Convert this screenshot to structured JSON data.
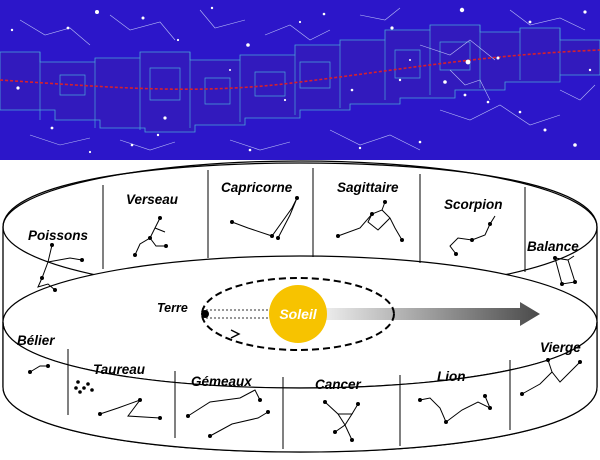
{
  "zodiac_signs": {
    "top_ring": [
      "Poissons",
      "Verseau",
      "Capricorne",
      "Sagittaire",
      "Scorpion",
      "Balance"
    ],
    "bottom_ring": [
      "Bélier",
      "Taureau",
      "Gémeaux",
      "Cancer",
      "Lion",
      "Vierge"
    ]
  },
  "center": {
    "earth_label": "Terre",
    "sun_label": "Soleil"
  },
  "colors": {
    "sky": "#2c16c9",
    "sun": "#f7c300",
    "ecliptic": "#d8202c",
    "arrow": "#555555"
  }
}
